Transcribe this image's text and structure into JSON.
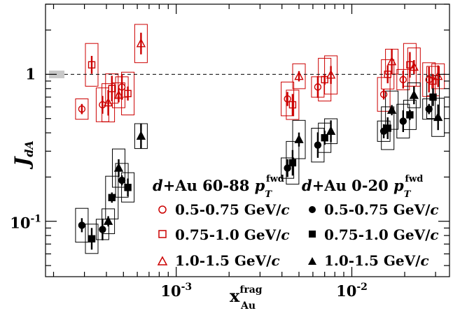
{
  "chart_data": {
    "type": "scatter",
    "x_scale": "log",
    "y_scale": "log",
    "xlim": [
      0.00018,
      0.036
    ],
    "ylim": [
      0.042,
      3.0
    ],
    "x_ticks": [
      {
        "value": 0.001,
        "base": "10",
        "exp": "-3"
      },
      {
        "value": 0.01,
        "base": "10",
        "exp": "-2"
      }
    ],
    "y_ticks": [
      {
        "value": 1,
        "base": "1",
        "exp": ""
      },
      {
        "value": 0.1,
        "base": "10",
        "exp": "-1"
      }
    ],
    "xlabel": {
      "main": "x",
      "sup": "frag",
      "sub": "Au"
    },
    "ylabel": {
      "main": "J",
      "sub": "dA"
    },
    "reference_line": 1,
    "global_uncertainty": {
      "low": 0.94,
      "high": 1.06
    },
    "legend": {
      "header_left": {
        "prefix": "d",
        "text": "+Au 60-88 ",
        "p": "p",
        "sub": "T",
        "sup": "fwd"
      },
      "header_right": {
        "prefix": "d",
        "text": "+Au 0-20 ",
        "p": "p",
        "sub": "T",
        "sup": "fwd"
      },
      "entries": [
        {
          "label": "0.5-0.75 GeV/",
          "unit": "c",
          "marker": "circle"
        },
        {
          "label": "0.75-1.0 GeV/",
          "unit": "c",
          "marker": "square"
        },
        {
          "label": "1.0-1.5 GeV/",
          "unit": "c",
          "marker": "triangle"
        }
      ]
    },
    "colors": {
      "peripheral": "#cc0000",
      "central": "#000000"
    },
    "series": [
      {
        "name": "d+Au 60-88 0.5-0.75 GeV/c",
        "group": "peripheral",
        "marker": "circle",
        "filled": false,
        "points": [
          [
            0.00029,
            0.58
          ],
          [
            0.00038,
            0.62
          ],
          [
            0.00049,
            0.82
          ],
          [
            0.0043,
            0.68
          ],
          [
            0.0064,
            0.82
          ],
          [
            0.0152,
            0.73
          ],
          [
            0.0196,
            0.92
          ],
          [
            0.0275,
            0.92
          ]
        ]
      },
      {
        "name": "d+Au 60-88 0.75-1.0 GeV/c",
        "group": "peripheral",
        "marker": "square",
        "filled": false,
        "points": [
          [
            0.00033,
            1.16
          ],
          [
            0.00043,
            0.8
          ],
          [
            0.00053,
            0.74
          ],
          [
            0.0046,
            0.62
          ],
          [
            0.007,
            0.92
          ],
          [
            0.016,
            1.0
          ],
          [
            0.0214,
            1.16
          ],
          [
            0.029,
            0.9
          ]
        ]
      },
      {
        "name": "d+Au 60-88 1.0-1.5 GeV/c",
        "group": "peripheral",
        "marker": "triangle",
        "filled": false,
        "points": [
          [
            0.00041,
            0.64
          ],
          [
            0.00047,
            0.72
          ],
          [
            0.00063,
            1.62
          ],
          [
            0.005,
            0.97
          ],
          [
            0.0076,
            0.99
          ],
          [
            0.0169,
            1.22
          ],
          [
            0.0226,
            1.12
          ],
          [
            0.031,
            0.97
          ]
        ]
      },
      {
        "name": "d+Au 0-20 0.5-0.75 GeV/c",
        "group": "central",
        "marker": "circle",
        "filled": true,
        "points": [
          [
            0.00029,
            0.094
          ],
          [
            0.00038,
            0.088
          ],
          [
            0.00049,
            0.19
          ],
          [
            0.0043,
            0.23
          ],
          [
            0.0064,
            0.33
          ],
          [
            0.0152,
            0.41
          ],
          [
            0.0196,
            0.48
          ],
          [
            0.0275,
            0.58
          ]
        ]
      },
      {
        "name": "d+Au 0-20 0.75-1.0 GeV/c",
        "group": "central",
        "marker": "square",
        "filled": true,
        "points": [
          [
            0.00033,
            0.076
          ],
          [
            0.00043,
            0.145
          ],
          [
            0.00053,
            0.17
          ],
          [
            0.0046,
            0.25
          ],
          [
            0.007,
            0.37
          ],
          [
            0.016,
            0.43
          ],
          [
            0.0214,
            0.53
          ],
          [
            0.029,
            0.7
          ]
        ]
      },
      {
        "name": "d+Au 0-20 1.0-1.5 GeV/c",
        "group": "central",
        "marker": "triangle",
        "filled": true,
        "points": [
          [
            0.00041,
            0.1
          ],
          [
            0.00047,
            0.23
          ],
          [
            0.00063,
            0.38
          ],
          [
            0.005,
            0.36
          ],
          [
            0.0076,
            0.41
          ],
          [
            0.0169,
            0.57
          ],
          [
            0.0226,
            0.72
          ],
          [
            0.031,
            0.51
          ]
        ]
      }
    ]
  }
}
